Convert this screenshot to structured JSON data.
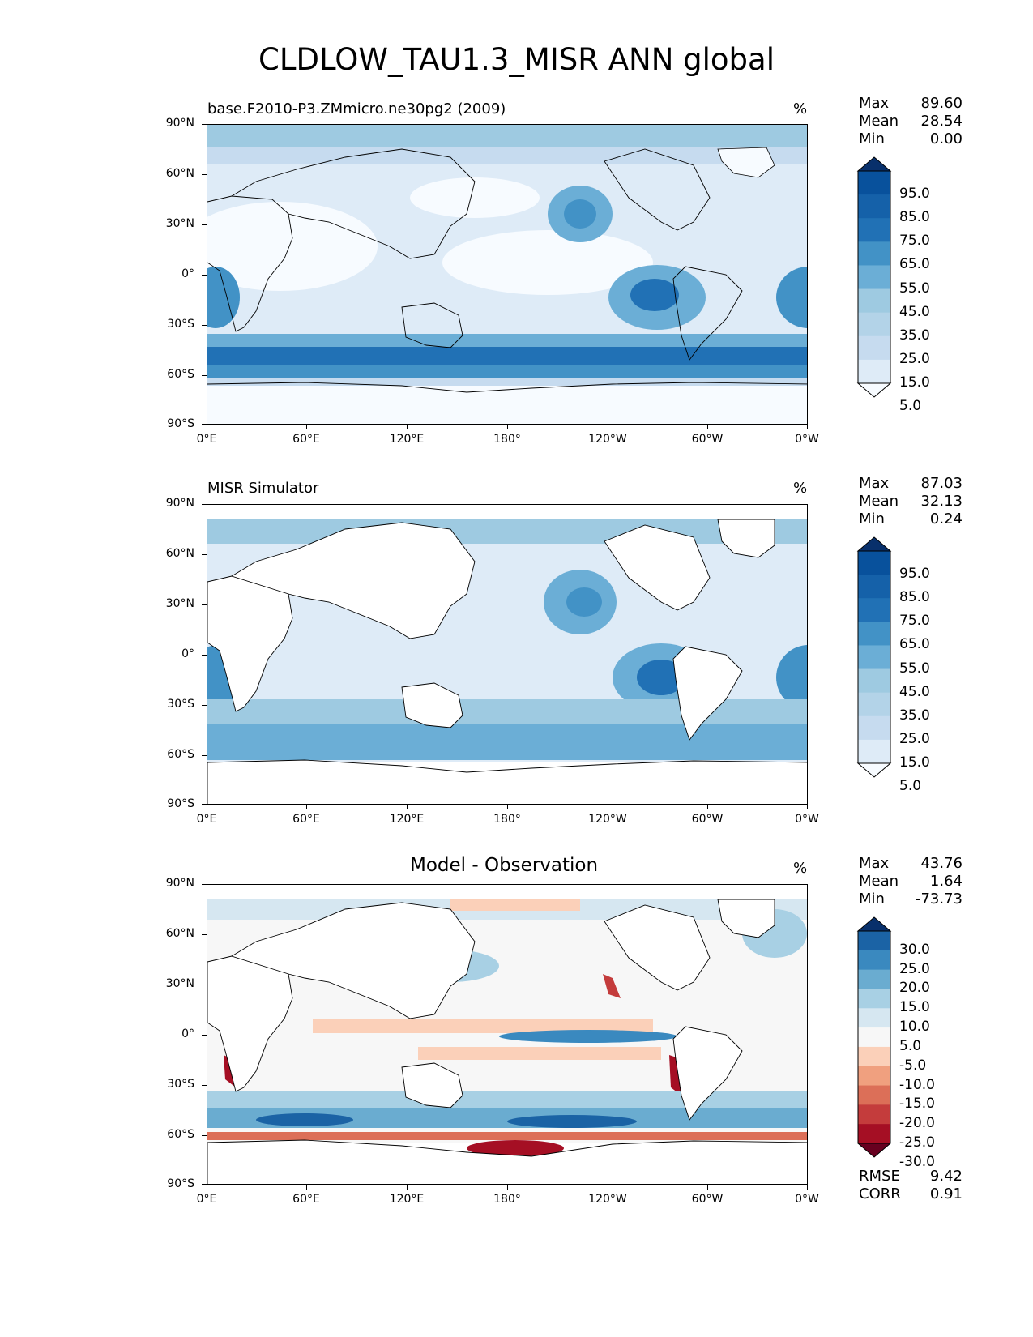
{
  "figure_title": "CLDLOW_TAU1.3_MISR ANN global",
  "panels": [
    {
      "title": "base.F2010-P3.ZMmicro.ne30pg2 (2009)",
      "title_align": "left",
      "units": "%",
      "stats": [
        {
          "label": "Max",
          "value": "89.60"
        },
        {
          "label": "Mean",
          "value": "28.54"
        },
        {
          "label": "Min",
          "value": "0.00"
        }
      ],
      "colorbar_labels": [
        "95.0",
        "85.0",
        "75.0",
        "65.0",
        "55.0",
        "45.0",
        "35.0",
        "25.0",
        "15.0",
        "5.0"
      ],
      "colormap": [
        "#f7fbff",
        "#deebf7",
        "#c6dbef",
        "#b3d3e8",
        "#9ecae1",
        "#6baed6",
        "#4292c6",
        "#2171b5",
        "#1561a9",
        "#08519c",
        "#08306b"
      ]
    },
    {
      "title": "MISR Simulator",
      "title_align": "left",
      "units": "%",
      "stats": [
        {
          "label": "Max",
          "value": "87.03"
        },
        {
          "label": "Mean",
          "value": "32.13"
        },
        {
          "label": "Min",
          "value": "0.24"
        }
      ],
      "colorbar_labels": [
        "95.0",
        "85.0",
        "75.0",
        "65.0",
        "55.0",
        "45.0",
        "35.0",
        "25.0",
        "15.0",
        "5.0"
      ],
      "colormap": [
        "#f7fbff",
        "#deebf7",
        "#c6dbef",
        "#b3d3e8",
        "#9ecae1",
        "#6baed6",
        "#4292c6",
        "#2171b5",
        "#1561a9",
        "#08519c",
        "#08306b"
      ]
    },
    {
      "title": "Model - Observation",
      "title_align": "center",
      "units": "%",
      "stats": [
        {
          "label": "Max",
          "value": "43.76"
        },
        {
          "label": "Mean",
          "value": "1.64"
        },
        {
          "label": "Min",
          "value": "-73.73"
        }
      ],
      "colorbar_labels": [
        "30.0",
        "25.0",
        "20.0",
        "15.0",
        "10.0",
        "5.0",
        "-5.0",
        "-10.0",
        "-15.0",
        "-20.0",
        "-25.0",
        "-30.0"
      ],
      "colormap": [
        "#67001f",
        "#a50f24",
        "#c43c3c",
        "#dc6f58",
        "#f0a07f",
        "#fbd0b9",
        "#f7f7f7",
        "#d6e7f1",
        "#a8d0e4",
        "#6aacd0",
        "#3a89bf",
        "#1b63a5",
        "#08306b"
      ],
      "bottom_stats": [
        {
          "label": "RMSE",
          "value": "9.42"
        },
        {
          "label": "CORR",
          "value": "0.91"
        }
      ]
    }
  ],
  "axes": {
    "lat_labels": [
      "90°N",
      "60°N",
      "30°N",
      "0°",
      "30°S",
      "60°S",
      "90°S"
    ],
    "lon_labels": [
      "0°E",
      "60°E",
      "120°E",
      "180°",
      "120°W",
      "60°W",
      "0°W"
    ]
  }
}
